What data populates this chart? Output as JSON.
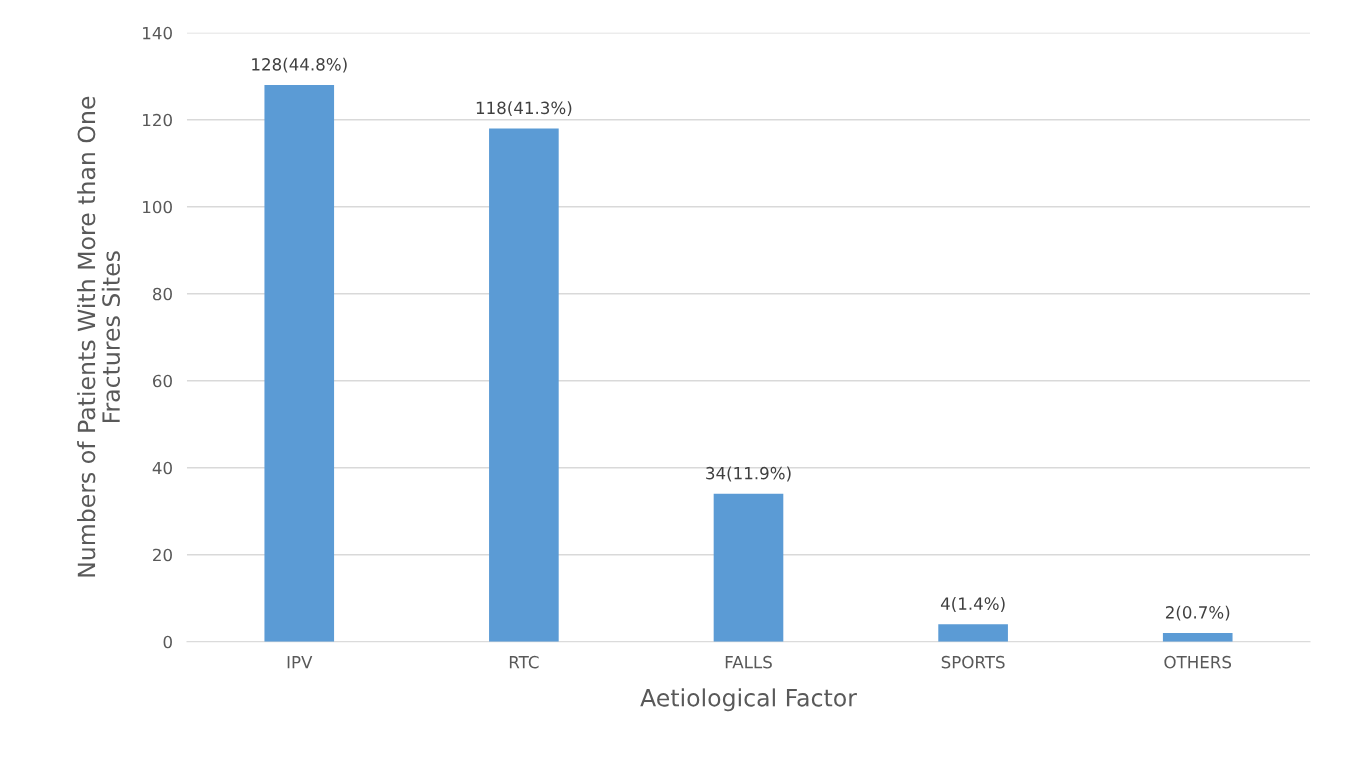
{
  "chart_data": {
    "type": "bar",
    "xlabel": "Aetiological Factor",
    "ylabel": "Numbers of Patients With More than One\nFractures Sites",
    "categories": [
      "IPV",
      "RTC",
      "FALLS",
      "SPORTS",
      "OTHERS"
    ],
    "values": [
      128,
      118,
      34,
      4,
      2
    ],
    "value_labels": [
      "128(44.8%)",
      "118(41.3%)",
      "34(11.9%)",
      "4(1.4%)",
      "2(0.7%)"
    ],
    "color": "#5b9bd5",
    "ylim": [
      0,
      140
    ],
    "yticks": [
      0,
      20,
      40,
      60,
      80,
      100,
      120,
      140
    ],
    "grid": "y"
  }
}
